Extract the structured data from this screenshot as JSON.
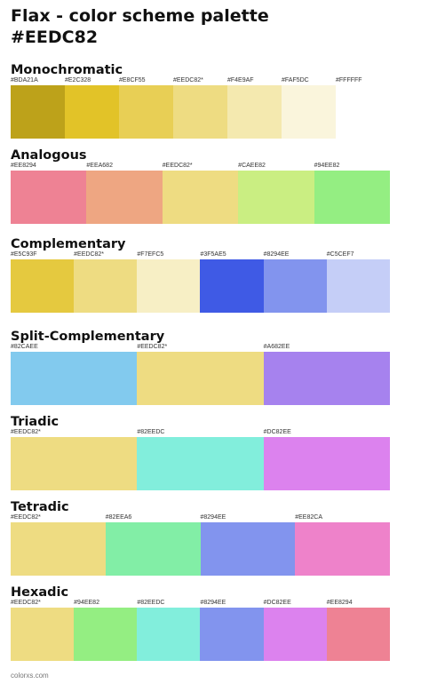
{
  "title_line1": "Flax - color scheme palette",
  "title_line2": "#EEDC82",
  "sections": [
    {
      "title": "Monochromatic",
      "swatches": [
        {
          "label": "#BDA21A",
          "color": "#BDA21A"
        },
        {
          "label": "#E2C328",
          "color": "#E2C328"
        },
        {
          "label": "#E8CF55",
          "color": "#E8CF55"
        },
        {
          "label": "#EEDC82*",
          "color": "#EEDC82"
        },
        {
          "label": "#F4E9AF",
          "color": "#F4E9AF"
        },
        {
          "label": "#FAF5DC",
          "color": "#FAF5DC"
        },
        {
          "label": "#FFFFFF",
          "color": "#FFFFFF"
        }
      ]
    },
    {
      "title": "Analogous",
      "swatches": [
        {
          "label": "#EE8294",
          "color": "#EE8294"
        },
        {
          "label": "#EEA682",
          "color": "#EEA682"
        },
        {
          "label": "#EEDC82*",
          "color": "#EEDC82"
        },
        {
          "label": "#CAEE82",
          "color": "#CAEE82"
        },
        {
          "label": "#94EE82",
          "color": "#94EE82"
        }
      ]
    },
    {
      "title": "Complementary",
      "swatches": [
        {
          "label": "#E5C93F",
          "color": "#E5C93F"
        },
        {
          "label": "#EEDC82*",
          "color": "#EEDC82"
        },
        {
          "label": "#F7EFC5",
          "color": "#F7EFC5"
        },
        {
          "label": "#3F5AE5",
          "color": "#3F5AE5"
        },
        {
          "label": "#8294EE",
          "color": "#8294EE"
        },
        {
          "label": "#C5CEF7",
          "color": "#C5CEF7"
        }
      ]
    },
    {
      "title": "Split-Complementary",
      "swatches": [
        {
          "label": "#82CAEE",
          "color": "#82CAEE"
        },
        {
          "label": "#EEDC82*",
          "color": "#EEDC82"
        },
        {
          "label": "#A682EE",
          "color": "#A682EE"
        }
      ]
    },
    {
      "title": "Triadic",
      "swatches": [
        {
          "label": "#EEDC82*",
          "color": "#EEDC82"
        },
        {
          "label": "#82EEDC",
          "color": "#82EEDC"
        },
        {
          "label": "#DC82EE",
          "color": "#DC82EE"
        }
      ]
    },
    {
      "title": "Tetradic",
      "swatches": [
        {
          "label": "#EEDC82*",
          "color": "#EEDC82"
        },
        {
          "label": "#82EEA6",
          "color": "#82EEA6"
        },
        {
          "label": "#8294EE",
          "color": "#8294EE"
        },
        {
          "label": "#EE82CA",
          "color": "#EE82CA"
        }
      ]
    },
    {
      "title": "Hexadic",
      "swatches": [
        {
          "label": "#EEDC82*",
          "color": "#EEDC82"
        },
        {
          "label": "#94EE82",
          "color": "#94EE82"
        },
        {
          "label": "#82EEDC",
          "color": "#82EEDC"
        },
        {
          "label": "#8294EE",
          "color": "#8294EE"
        },
        {
          "label": "#DC82EE",
          "color": "#DC82EE"
        },
        {
          "label": "#EE8294",
          "color": "#EE8294"
        }
      ]
    }
  ],
  "footer": "colorxs.com"
}
